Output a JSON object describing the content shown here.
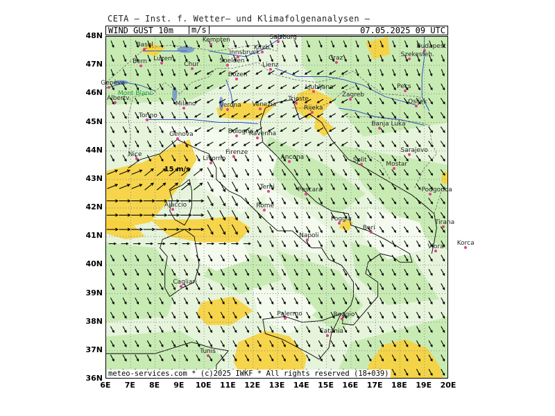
{
  "header": {
    "agency": "CETA — Inst. f. Wetter— und Klimafolgenanalysen —",
    "field": "WIND_GUST_10m",
    "unit": "m/s",
    "valid_time": "07.05.2025  09  UTC"
  },
  "footer": {
    "copyright": "meteo-services.com * (c)2025 IWKF * All rights reserved (18+039)"
  },
  "map": {
    "lon_range": [
      6,
      20
    ],
    "lat_range": [
      36,
      48
    ],
    "lat_labels": [
      "48N",
      "47N",
      "46N",
      "45N",
      "44N",
      "43N",
      "42N",
      "41N",
      "40N",
      "39N",
      "38N",
      "37N",
      "36N"
    ],
    "lon_labels": [
      "6E",
      "7E",
      "8E",
      "9E",
      "10E",
      "11E",
      "12E",
      "13E",
      "14E",
      "15E",
      "16E",
      "17E",
      "18E",
      "19E",
      "20E"
    ],
    "speed_annotation": "15 m/s",
    "colors": {
      "background_green": "#e6f4dc",
      "light_green": "#c8ebb4",
      "pale_zone": "#f4fbee",
      "yellow": "#f7d23c",
      "coast": "#000000",
      "border": "#555555",
      "river": "#2040c0",
      "city_marker": "#e0408f",
      "grid": "#888888"
    }
  },
  "cities": [
    {
      "name": "Basel",
      "lon": 7.6,
      "lat": 47.55
    },
    {
      "name": "Luzern",
      "lon": 8.3,
      "lat": 47.05
    },
    {
      "name": "Bern",
      "lon": 7.45,
      "lat": 46.95
    },
    {
      "name": "Genève",
      "lon": 6.15,
      "lat": 46.2
    },
    {
      "name": "Albertv.",
      "lon": 6.4,
      "lat": 45.67
    },
    {
      "name": "Mont Blanc",
      "lon": 6.85,
      "lat": 45.83
    },
    {
      "name": "Chur",
      "lon": 9.55,
      "lat": 46.85
    },
    {
      "name": "Kempten",
      "lon": 10.3,
      "lat": 47.72
    },
    {
      "name": "Soelden",
      "lon": 11.0,
      "lat": 46.97
    },
    {
      "name": "Innsbruck",
      "lon": 11.4,
      "lat": 47.27
    },
    {
      "name": "Salzburg",
      "lon": 13.05,
      "lat": 47.8
    },
    {
      "name": "Kitzb.",
      "lon": 12.4,
      "lat": 47.45
    },
    {
      "name": "Lienz",
      "lon": 12.75,
      "lat": 46.83
    },
    {
      "name": "Bozen",
      "lon": 11.35,
      "lat": 46.5
    },
    {
      "name": "Graz",
      "lon": 15.45,
      "lat": 47.07
    },
    {
      "name": "Budapest",
      "lon": 19.05,
      "lat": 47.5
    },
    {
      "name": "Szekesfeh.",
      "lon": 18.4,
      "lat": 47.2
    },
    {
      "name": "Pecs",
      "lon": 18.25,
      "lat": 46.07
    },
    {
      "name": "Osijek",
      "lon": 18.7,
      "lat": 45.55
    },
    {
      "name": "Ljubljana",
      "lon": 14.5,
      "lat": 46.05
    },
    {
      "name": "Trieste",
      "lon": 13.8,
      "lat": 45.65
    },
    {
      "name": "Rijeka",
      "lon": 14.45,
      "lat": 45.33
    },
    {
      "name": "Zagreb",
      "lon": 16.0,
      "lat": 45.8
    },
    {
      "name": "Milano",
      "lon": 9.2,
      "lat": 45.47
    },
    {
      "name": "Torino",
      "lon": 7.7,
      "lat": 45.07
    },
    {
      "name": "Verona",
      "lon": 11.0,
      "lat": 45.43
    },
    {
      "name": "Venezia",
      "lon": 12.33,
      "lat": 45.45
    },
    {
      "name": "Genova",
      "lon": 8.95,
      "lat": 44.4
    },
    {
      "name": "Bologna",
      "lon": 11.35,
      "lat": 44.5
    },
    {
      "name": "Ravenna",
      "lon": 12.2,
      "lat": 44.42
    },
    {
      "name": "Banja Luka",
      "lon": 17.2,
      "lat": 44.77
    },
    {
      "name": "Nice",
      "lon": 7.27,
      "lat": 43.7
    },
    {
      "name": "Firenze",
      "lon": 11.25,
      "lat": 43.77
    },
    {
      "name": "Livorno",
      "lon": 10.32,
      "lat": 43.55
    },
    {
      "name": "Ancona",
      "lon": 13.5,
      "lat": 43.6
    },
    {
      "name": "Split",
      "lon": 16.45,
      "lat": 43.5
    },
    {
      "name": "Sarajevo",
      "lon": 18.4,
      "lat": 43.85
    },
    {
      "name": "Mostar",
      "lon": 17.8,
      "lat": 43.35
    },
    {
      "name": "Terni",
      "lon": 12.65,
      "lat": 42.55
    },
    {
      "name": "Pescara",
      "lon": 14.2,
      "lat": 42.45
    },
    {
      "name": "Podgorica",
      "lon": 19.25,
      "lat": 42.45
    },
    {
      "name": "Ajaccio",
      "lon": 8.75,
      "lat": 41.93
    },
    {
      "name": "Rome",
      "lon": 12.5,
      "lat": 41.9
    },
    {
      "name": "Tirana",
      "lon": 19.8,
      "lat": 41.33
    },
    {
      "name": "Foggia",
      "lon": 15.55,
      "lat": 41.45
    },
    {
      "name": "Napoli",
      "lon": 14.25,
      "lat": 40.85
    },
    {
      "name": "Bari",
      "lon": 16.85,
      "lat": 41.12
    },
    {
      "name": "Vlora",
      "lon": 19.5,
      "lat": 40.47
    },
    {
      "name": "Korca",
      "lon": 20.7,
      "lat": 40.6
    },
    {
      "name": "Cagliari",
      "lon": 9.1,
      "lat": 39.22
    },
    {
      "name": "Reggio",
      "lon": 15.65,
      "lat": 38.1
    },
    {
      "name": "Palermo",
      "lon": 13.35,
      "lat": 38.12
    },
    {
      "name": "Catania",
      "lon": 15.08,
      "lat": 37.5
    },
    {
      "name": "Tunis",
      "lon": 10.2,
      "lat": 36.8
    }
  ]
}
